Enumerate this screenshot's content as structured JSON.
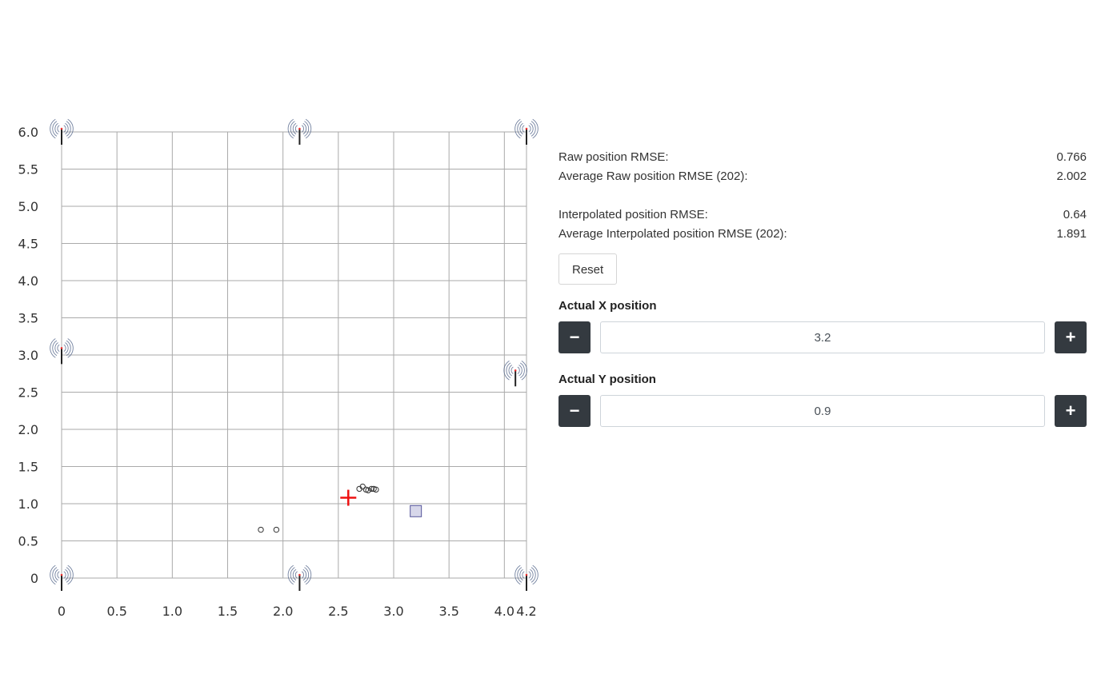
{
  "chart_data": {
    "type": "scatter",
    "xlim": [
      0,
      4.2
    ],
    "ylim": [
      0,
      6.0
    ],
    "x_ticks": [
      "0",
      "0.5",
      "1.0",
      "1.5",
      "2.0",
      "2.5",
      "3.0",
      "3.5",
      "4.0",
      "4.2"
    ],
    "y_ticks": [
      "0",
      "0.5",
      "1.0",
      "1.5",
      "2.0",
      "2.5",
      "3.0",
      "3.5",
      "4.0",
      "4.5",
      "5.0",
      "5.5",
      "6.0"
    ],
    "grid": true,
    "anchors": [
      {
        "x": 0,
        "y": 6.0
      },
      {
        "x": 2.15,
        "y": 6.0
      },
      {
        "x": 4.2,
        "y": 6.0
      },
      {
        "x": 0,
        "y": 3.05
      },
      {
        "x": 4.1,
        "y": 2.75
      },
      {
        "x": 0,
        "y": 0
      },
      {
        "x": 2.15,
        "y": 0
      },
      {
        "x": 4.2,
        "y": 0
      }
    ],
    "raw_positions": [
      {
        "x": 1.8,
        "y": 0.65
      },
      {
        "x": 1.94,
        "y": 0.65
      },
      {
        "x": 2.69,
        "y": 1.2
      },
      {
        "x": 2.72,
        "y": 1.23
      },
      {
        "x": 2.75,
        "y": 1.19
      },
      {
        "x": 2.77,
        "y": 1.18
      },
      {
        "x": 2.8,
        "y": 1.2
      },
      {
        "x": 2.82,
        "y": 1.2
      },
      {
        "x": 2.84,
        "y": 1.19
      }
    ],
    "interpolated_position": {
      "x": 2.59,
      "y": 1.08
    },
    "actual_position": {
      "x": 3.2,
      "y": 0.9
    },
    "colors": {
      "grid": "#aaaaaa",
      "interpolated": "#ee1111",
      "actual_fill": "#d7d7ea",
      "actual_stroke": "#55559a",
      "anchor": "#5a6c8f"
    }
  },
  "stats": {
    "raw_label": "Raw position RMSE:",
    "raw_value": "0.766",
    "avg_raw_label": "Average Raw position RMSE (202):",
    "avg_raw_value": "2.002",
    "interp_label": "Interpolated position RMSE:",
    "interp_value": "0.64",
    "avg_interp_label": "Average Interpolated position RMSE (202):",
    "avg_interp_value": "1.891"
  },
  "reset_label": "Reset",
  "x_position": {
    "label": "Actual X position",
    "value": "3.2",
    "minus": "−",
    "plus": "+"
  },
  "y_position": {
    "label": "Actual Y position",
    "value": "0.9",
    "minus": "−",
    "plus": "+"
  },
  "icons": {
    "minus": "minus-icon",
    "plus": "plus-icon",
    "anchor": "wifi-anchor-icon"
  }
}
